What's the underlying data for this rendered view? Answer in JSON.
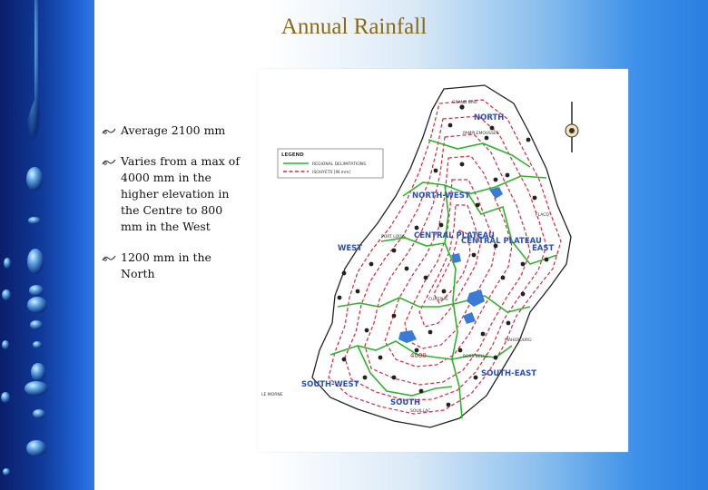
{
  "title": "Annual Rainfall",
  "bullets": [
    "Average 2100 mm",
    "Varies from a max of 4000 mm in the higher elevation in the Centre to 800 mm in the West",
    "1200 mm in the North"
  ],
  "map": {
    "regions": [
      {
        "id": "north",
        "label": "NORTH"
      },
      {
        "id": "north-west",
        "label": "NORTH-WEST"
      },
      {
        "id": "central-plateau-1",
        "label": "CENTRAL PLATEAU"
      },
      {
        "id": "central-plateau-2",
        "label": "CENTRAL PLATEAU"
      },
      {
        "id": "west",
        "label": "WEST"
      },
      {
        "id": "east",
        "label": "EAST"
      },
      {
        "id": "south-east",
        "label": "SOUTH-EAST"
      },
      {
        "id": "south-west",
        "label": "SOUTH-WEST"
      },
      {
        "id": "south",
        "label": "SOUTH"
      }
    ],
    "legend": {
      "title": "LEGEND",
      "items": [
        {
          "label": "REGIONAL DELIMITATIONS",
          "color": "#2db42d"
        },
        {
          "label": "ISOHYETS [IN mm]",
          "color": "#d7263d"
        }
      ]
    },
    "isohyet_label": "4000",
    "towns": [
      "GRAND BAIE",
      "PAMPLEMOUSSES",
      "PORT LOUIS",
      "CUREPIPE",
      "MAHEBOURG",
      "FLACQ",
      "LE MORNE",
      "SOUILLAC",
      "ROSE BELLE"
    ],
    "colors": {
      "isohyet": "#d7263d",
      "region": "#2db42d",
      "region_label": "#2b4fb3",
      "water": "#3a7bd5"
    }
  }
}
